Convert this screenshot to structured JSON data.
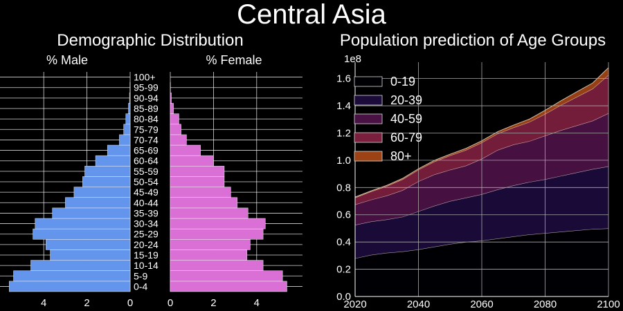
{
  "figure": {
    "title": "Central Asia"
  },
  "chart_data": [
    {
      "type": "bar",
      "orientation": "horizontal",
      "title": "Demographic Distribution",
      "left_label": "% Male",
      "right_label": "% Female",
      "categories": [
        "0-4",
        "5-9",
        "10-14",
        "15-19",
        "20-24",
        "25-29",
        "30-34",
        "35-39",
        "40-44",
        "45-49",
        "50-54",
        "55-59",
        "60-64",
        "65-69",
        "70-74",
        "75-79",
        "80-84",
        "85-89",
        "90-94",
        "95-99",
        "100+"
      ],
      "series": [
        {
          "name": "% Male",
          "values": [
            5.6,
            5.4,
            4.6,
            3.7,
            3.9,
            4.5,
            4.4,
            3.6,
            3.0,
            2.6,
            2.2,
            2.1,
            1.6,
            1.05,
            0.5,
            0.3,
            0.2,
            0.08,
            0.03,
            0.01,
            0.0
          ],
          "color": "#6495ed"
        },
        {
          "name": "% Female",
          "values": [
            5.4,
            5.2,
            4.3,
            3.55,
            3.7,
            4.3,
            4.4,
            3.6,
            3.1,
            2.8,
            2.5,
            2.5,
            2.0,
            1.4,
            0.75,
            0.5,
            0.4,
            0.15,
            0.05,
            0.01,
            0.0
          ],
          "color": "#da70d6"
        }
      ],
      "xticks": [
        "0",
        "2",
        "4"
      ],
      "xlim": [
        0,
        5.8
      ]
    },
    {
      "type": "area",
      "stacked": true,
      "title": "Population prediction of Age Groups",
      "y_offset_label": "1e8",
      "x": [
        2020,
        2025,
        2030,
        2035,
        2040,
        2045,
        2050,
        2055,
        2060,
        2065,
        2070,
        2075,
        2080,
        2085,
        2090,
        2095,
        2100
      ],
      "xticks": [
        "2020",
        "2040",
        "2060",
        "2080",
        "2100"
      ],
      "yticks": [
        "0.0",
        "0.2",
        "0.4",
        "0.6",
        "0.8",
        "1.0",
        "1.2",
        "1.4",
        "1.6"
      ],
      "xlim": [
        2020,
        2100
      ],
      "ylim": [
        0,
        1.72
      ],
      "series": [
        {
          "name": "0-19",
          "color": "#000004",
          "values": [
            0.28,
            0.305,
            0.32,
            0.33,
            0.345,
            0.365,
            0.385,
            0.4,
            0.41,
            0.425,
            0.44,
            0.455,
            0.465,
            0.475,
            0.485,
            0.495,
            0.5
          ]
        },
        {
          "name": "20-39",
          "color": "#1b0b3b",
          "values": [
            0.245,
            0.245,
            0.245,
            0.255,
            0.28,
            0.3,
            0.315,
            0.325,
            0.34,
            0.36,
            0.375,
            0.385,
            0.395,
            0.41,
            0.425,
            0.44,
            0.455
          ]
        },
        {
          "name": "40-59",
          "color": "#4a1145",
          "values": [
            0.15,
            0.16,
            0.175,
            0.195,
            0.22,
            0.23,
            0.23,
            0.235,
            0.26,
            0.29,
            0.3,
            0.3,
            0.32,
            0.335,
            0.345,
            0.355,
            0.39
          ]
        },
        {
          "name": "60-79",
          "color": "#7a1f3d",
          "values": [
            0.05,
            0.06,
            0.07,
            0.08,
            0.085,
            0.095,
            0.105,
            0.115,
            0.12,
            0.12,
            0.125,
            0.14,
            0.16,
            0.185,
            0.21,
            0.235,
            0.28
          ]
        },
        {
          "name": "80+",
          "color": "#9c4215",
          "values": [
            0.005,
            0.005,
            0.006,
            0.007,
            0.008,
            0.009,
            0.01,
            0.012,
            0.013,
            0.015,
            0.018,
            0.022,
            0.027,
            0.032,
            0.038,
            0.042,
            0.055
          ]
        }
      ],
      "legend": "top-left"
    }
  ]
}
